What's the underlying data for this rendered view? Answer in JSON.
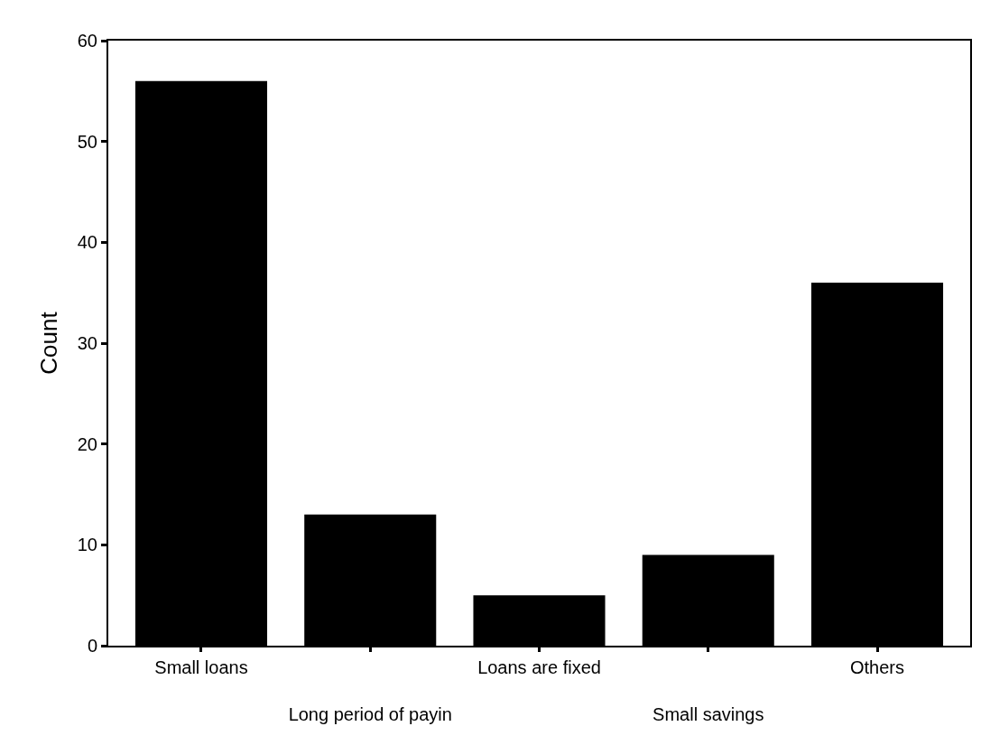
{
  "chart_data": {
    "type": "bar",
    "ylabel": "Count",
    "categories": [
      "Small loans",
      "Long period of payin",
      "Loans are fixed",
      "Small savings",
      "Others"
    ],
    "values": [
      56,
      13,
      5,
      9,
      36
    ],
    "color": "#000000",
    "ylim": [
      0,
      60
    ],
    "yticks": [
      0,
      10,
      20,
      30,
      40,
      50,
      60
    ]
  }
}
